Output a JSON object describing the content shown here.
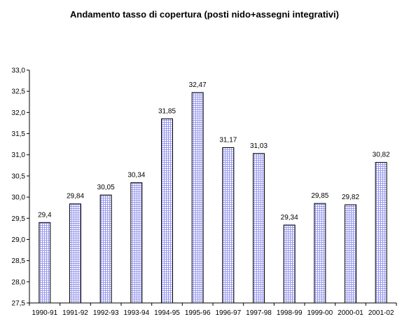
{
  "chart_data": {
    "type": "bar",
    "title": "Andamento tasso di copertura (posti nido+assegni integrativi)",
    "categories": [
      "1990-91",
      "1991-92",
      "1992-93",
      "1993-94",
      "1994-95",
      "1995-96",
      "1996-97",
      "1997-98",
      "1998-99",
      "1999-00",
      "2000-01",
      "2001-02"
    ],
    "values": [
      29.4,
      29.84,
      30.05,
      30.34,
      31.85,
      32.47,
      31.17,
      31.03,
      29.34,
      29.85,
      29.82,
      30.82
    ],
    "data_labels": [
      "29,4",
      "29,84",
      "30,05",
      "30,34",
      "31,85",
      "32,47",
      "31,17",
      "31,03",
      "29,34",
      "29,85",
      "29,82",
      "30,82"
    ],
    "ylim": [
      27.5,
      33.0
    ],
    "yticks": [
      27.5,
      28.0,
      28.5,
      29.0,
      29.5,
      30.0,
      30.5,
      31.0,
      31.5,
      32.0,
      32.5,
      33.0
    ],
    "ytick_labels": [
      "27,5",
      "28,0",
      "28,5",
      "29,0",
      "29,5",
      "30,0",
      "30,5",
      "31,0",
      "31,5",
      "32,0",
      "32,5",
      "33,0"
    ],
    "xlabel": "",
    "ylabel": "",
    "grid": false,
    "legend": "none",
    "bar_fill_pattern": "blue grid hatch",
    "colors": {
      "bar_line": "#9999ee",
      "bar_bg": "#ffffff",
      "axis": "#000000"
    }
  }
}
